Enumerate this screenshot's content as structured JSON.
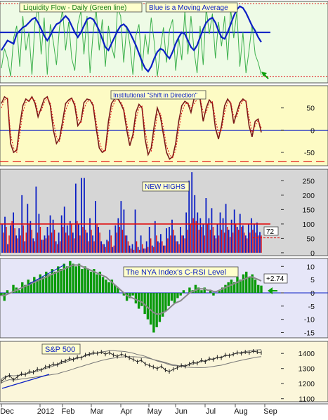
{
  "colors": {
    "panel1_bg": "#eefbe6",
    "panel2_bg": "#fdfbc4",
    "panel3_bg": "#d6d6d6",
    "panel4_bg": "#e6e6f8",
    "panel5_bg": "#fbf6da",
    "green_line": "#3cb04c",
    "blue_line": "#0b1fc4",
    "red": "#e01010",
    "green_fill": "#0a9a0a",
    "gray_avg": "#8a8a8a",
    "label_bg": "#ffffcc",
    "arrow_green": "#0aa00a",
    "price_line": "#222222"
  },
  "chart_data": [
    {
      "type": "line",
      "title": "Liquidity Flow - Daily  (Green line)",
      "subtitle": "Blue is a Moving Average",
      "ylim": [
        0,
        100
      ],
      "reference_lines": [
        8,
        62,
        97
      ],
      "series": [
        {
          "name": "Liquidity Flow - Daily",
          "values": [
            18,
            42,
            30,
            8,
            55,
            70,
            20,
            82,
            40,
            62,
            10,
            75,
            92,
            35,
            80,
            10,
            72,
            50,
            22,
            68,
            90,
            40,
            75,
            30,
            15,
            72,
            88,
            35,
            82,
            12,
            62,
            90,
            40,
            78,
            20,
            70,
            45,
            30,
            92,
            82,
            25,
            70,
            48,
            10,
            58,
            72,
            15,
            60,
            35,
            80,
            50,
            8,
            42,
            68,
            25,
            65,
            78,
            15,
            55,
            28,
            88,
            35,
            82,
            40,
            12,
            70,
            22,
            92,
            60,
            85,
            30,
            75,
            45,
            82,
            28,
            90,
            55,
            88,
            20,
            62,
            12,
            40,
            72,
            35,
            25,
            10
          ]
        },
        {
          "name": "Blue is a Moving Average",
          "values": [
            40,
            46,
            52,
            50,
            48,
            60,
            64,
            68,
            70,
            74,
            78,
            80,
            74,
            66,
            58,
            52,
            58,
            66,
            72,
            74,
            78,
            82,
            78,
            70,
            62,
            56,
            62,
            70,
            78,
            80,
            78,
            72,
            64,
            54,
            44,
            40,
            48,
            56,
            64,
            70,
            72,
            68,
            62,
            54,
            46,
            36,
            26,
            18,
            14,
            20,
            30,
            38,
            42,
            40,
            34,
            30,
            38,
            48,
            56,
            62,
            60,
            52,
            44,
            40,
            46,
            56,
            66,
            74,
            78,
            80,
            74,
            64,
            56,
            54,
            62,
            72,
            82,
            90,
            94,
            92,
            86,
            78,
            70,
            64,
            56,
            50
          ]
        }
      ]
    },
    {
      "type": "line",
      "title": "Institutional \"Shift in Direction\"",
      "ylim": [
        -80,
        100
      ],
      "yticks": [
        50,
        0,
        -50
      ],
      "reference_lines": [
        0,
        -70
      ],
      "series": [
        {
          "name": "",
          "values": [
            60,
            75,
            70,
            -30,
            -50,
            -45,
            10,
            55,
            70,
            65,
            75,
            60,
            30,
            50,
            70,
            75,
            55,
            0,
            -30,
            -20,
            20,
            60,
            68,
            72,
            55,
            10,
            20,
            62,
            70,
            68,
            55,
            5,
            -40,
            -50,
            -45,
            20,
            60,
            70,
            72,
            60,
            45,
            0,
            -35,
            -10,
            40,
            58,
            50,
            -20,
            -55,
            -40,
            10,
            50,
            30,
            -10,
            -50,
            -65,
            -60,
            -30,
            20,
            55,
            65,
            60,
            40,
            70,
            75,
            70,
            20,
            50,
            68,
            60,
            5,
            -20,
            10,
            55,
            70,
            60,
            15,
            40,
            62,
            70,
            65,
            10,
            -15,
            20,
            25,
            -5
          ]
        },
        {
          "name": "",
          "values": [
            50,
            68,
            72,
            -10,
            -40,
            -50,
            -10,
            40,
            62,
            68,
            72,
            66,
            40,
            42,
            62,
            72,
            62,
            20,
            -15,
            -25,
            5,
            45,
            62,
            70,
            62,
            25,
            15,
            48,
            64,
            68,
            60,
            20,
            -25,
            -45,
            -48,
            0,
            45,
            64,
            70,
            64,
            50,
            15,
            -20,
            -20,
            25,
            50,
            54,
            0,
            -40,
            -48,
            -10,
            35,
            38,
            5,
            -35,
            -55,
            -62,
            -45,
            0,
            40,
            58,
            62,
            50,
            58,
            70,
            72,
            40,
            40,
            60,
            64,
            25,
            -8,
            0,
            40,
            62,
            64,
            30,
            30,
            55,
            66,
            66,
            30,
            -5,
            10,
            22,
            5
          ]
        }
      ]
    },
    {
      "type": "bar",
      "title": "NEW HIGHS",
      "ylim": [
        -10,
        290
      ],
      "yticks": [
        250,
        200,
        150,
        100,
        50,
        0
      ],
      "reference_lines": [
        100,
        52
      ],
      "last_value_label": "72",
      "series": [
        {
          "name": "",
          "values": [
            100,
            125,
            30,
            95,
            140,
            60,
            85,
            200,
            40,
            170,
            110,
            50,
            230,
            135,
            45,
            60,
            90,
            130,
            115,
            40,
            70,
            130,
            160,
            95,
            110,
            70,
            240,
            100,
            260,
            260,
            70,
            120,
            60,
            180,
            90,
            40,
            30,
            45,
            80,
            20,
            95,
            120,
            180,
            150,
            60,
            25,
            30,
            150,
            20,
            60,
            15,
            40,
            90,
            25,
            110,
            40,
            65,
            25,
            85,
            90,
            115,
            60,
            40,
            90,
            60,
            140,
            250,
            280,
            200,
            140,
            120,
            100,
            190,
            120,
            155,
            60,
            100,
            140,
            120,
            170,
            80,
            115,
            150,
            90,
            135,
            95,
            60,
            100,
            120,
            100,
            105,
            72
          ]
        },
        {
          "name": "",
          "values": [
            70,
            90,
            60,
            110,
            85,
            50,
            60,
            95,
            70,
            100,
            80,
            40,
            70,
            90,
            45,
            50,
            60,
            70,
            80,
            30,
            40,
            90,
            70,
            60,
            100,
            50,
            110,
            60,
            90,
            80,
            40,
            80,
            40,
            100,
            70,
            30,
            20,
            40,
            60,
            25,
            70,
            90,
            80,
            60,
            40,
            15,
            10,
            40,
            10,
            30,
            15,
            20,
            50,
            20,
            60,
            35,
            40,
            25,
            50,
            60,
            80,
            40,
            30,
            60,
            50,
            80,
            100,
            120,
            110,
            80,
            90,
            60,
            100,
            80,
            90,
            50,
            60,
            80,
            70,
            90,
            55,
            70,
            100,
            80,
            90,
            70,
            50,
            70,
            80,
            70,
            60,
            60
          ]
        }
      ]
    },
    {
      "type": "area",
      "title": "The NYA Index's C-RSI Level",
      "ylim": [
        -17,
        13
      ],
      "yticks": [
        10,
        5,
        0,
        -5,
        -10,
        -15
      ],
      "last_value_label": "+2.74",
      "series": [
        {
          "name": "",
          "values": [
            -1,
            -3,
            1,
            0,
            3,
            2,
            1,
            4,
            3,
            5,
            4,
            6,
            5,
            7,
            6,
            8,
            7,
            9,
            8,
            10,
            9,
            11,
            10,
            12,
            11,
            10,
            11,
            9,
            10,
            9,
            8,
            9,
            7,
            8,
            6,
            5,
            4,
            5,
            3,
            2,
            0,
            -1,
            -3,
            -2,
            -1,
            -4,
            -6,
            -5,
            -8,
            -10,
            -12,
            -15,
            -13,
            -11,
            -9,
            -7,
            -5,
            -3,
            -4,
            -2,
            -1,
            1,
            0,
            2,
            1,
            3,
            2,
            1,
            2,
            0,
            1,
            -1,
            0,
            1,
            2,
            3,
            4,
            5,
            4,
            6,
            5,
            7,
            8,
            6,
            7,
            5,
            3,
            2.74
          ]
        },
        {
          "name": "",
          "values": [
            -1,
            -1,
            -0.5,
            0,
            0.5,
            1,
            1.5,
            2,
            2.5,
            3,
            3.5,
            4,
            4.5,
            5,
            5.5,
            6,
            6.5,
            7,
            7.5,
            8,
            8.5,
            9,
            9.5,
            10,
            10.5,
            10.5,
            10.5,
            10,
            9.5,
            9,
            8.5,
            8,
            7.5,
            7,
            6.5,
            6,
            5,
            4,
            3,
            2,
            1,
            0,
            -1,
            -1.5,
            -2,
            -2.5,
            -3,
            -3.5,
            -4.5,
            -5.5,
            -6.5,
            -7.5,
            -8,
            -8,
            -7.5,
            -7,
            -6,
            -5,
            -4,
            -3.5,
            -3,
            -2,
            -1,
            0,
            0.5,
            1,
            1.5,
            1.5,
            1.5,
            1,
            1,
            0.5,
            0.5,
            1,
            1.5,
            2,
            2.5,
            3,
            3.5,
            4,
            4.5,
            5,
            5.5,
            6,
            6,
            5.5,
            5,
            4.5
          ]
        }
      ]
    },
    {
      "type": "line",
      "title": "S&P 500",
      "ylim": [
        1080,
        1480
      ],
      "yticks": [
        1400,
        1300,
        1200,
        1100
      ],
      "x_tick_labels": [
        "Dec",
        "2012",
        "Feb",
        "Mar",
        "Apr",
        "May",
        "Jun",
        "Jul",
        "Aug",
        "Sep"
      ],
      "series": [
        {
          "name": "",
          "values": [
            1215,
            1240,
            1255,
            1225,
            1245,
            1265,
            1260,
            1280,
            1275,
            1295,
            1290,
            1310,
            1315,
            1330,
            1325,
            1345,
            1350,
            1365,
            1360,
            1375,
            1370,
            1390,
            1395,
            1405,
            1400,
            1410,
            1395,
            1405,
            1390,
            1380,
            1395,
            1385,
            1370,
            1360,
            1345,
            1355,
            1330,
            1320,
            1310,
            1300,
            1315,
            1290,
            1280,
            1295,
            1305,
            1320,
            1315,
            1330,
            1340,
            1335,
            1355,
            1345,
            1365,
            1360,
            1375,
            1370,
            1390,
            1385,
            1395,
            1405,
            1400,
            1410,
            1405,
            1415,
            1410,
            1405
          ]
        }
      ]
    }
  ]
}
